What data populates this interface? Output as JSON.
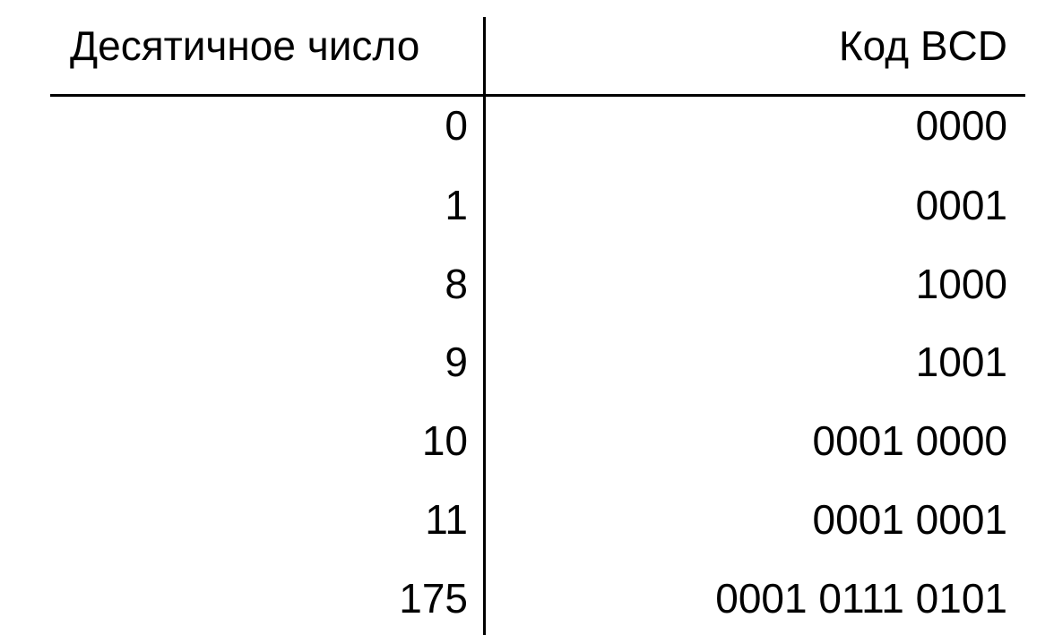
{
  "table": {
    "headers": {
      "decimal": "Десятичное число",
      "bcd": "Код BCD"
    },
    "rows": [
      {
        "decimal": "0",
        "bcd": "0000"
      },
      {
        "decimal": "1",
        "bcd": "0001"
      },
      {
        "decimal": "8",
        "bcd": "1000"
      },
      {
        "decimal": "9",
        "bcd": "1001"
      },
      {
        "decimal": "10",
        "bcd": "0001 0000"
      },
      {
        "decimal": "11",
        "bcd": "0001 0001"
      },
      {
        "decimal": "175",
        "bcd": "0001 0111 0101"
      }
    ]
  }
}
